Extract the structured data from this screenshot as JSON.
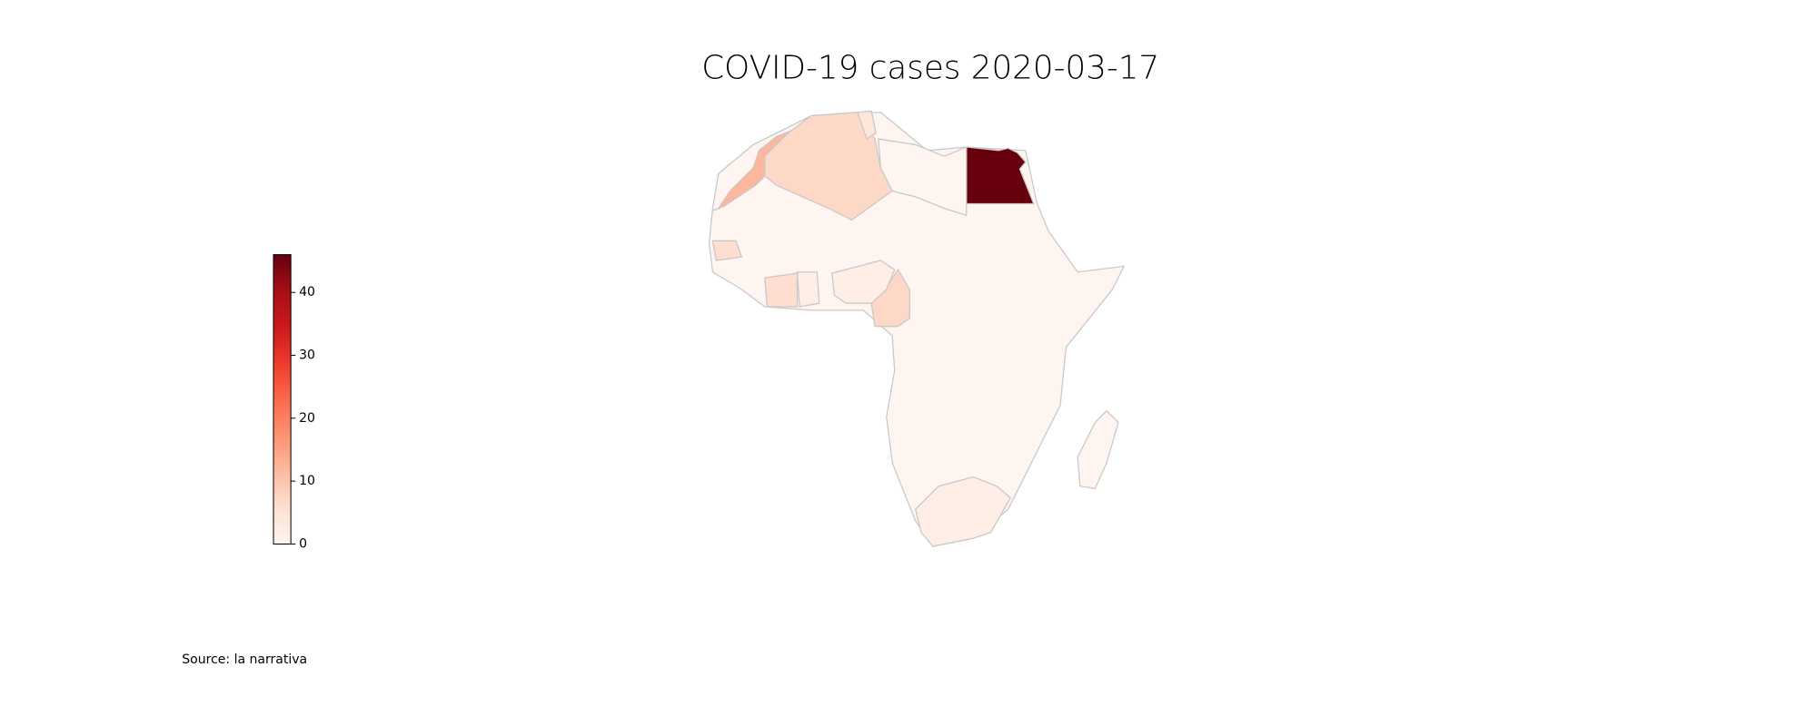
{
  "chart_data": {
    "type": "choropleth",
    "title": "COVID-19 cases 2020-03-17",
    "values": [
      46,
      12,
      7,
      4,
      0,
      7,
      6,
      6,
      2,
      2,
      2,
      0
    ],
    "colormap": [
      "#fff5f0",
      "#fee0d2",
      "#fcbba1",
      "#fc9272",
      "#fb6a4a",
      "#ef3b2c",
      "#cb181d",
      "#a50f15",
      "#67000d"
    ],
    "clim": [
      0,
      46
    ],
    "cticks": [
      0,
      10,
      20,
      30,
      40
    ],
    "source": "Source: la narrativa"
  }
}
